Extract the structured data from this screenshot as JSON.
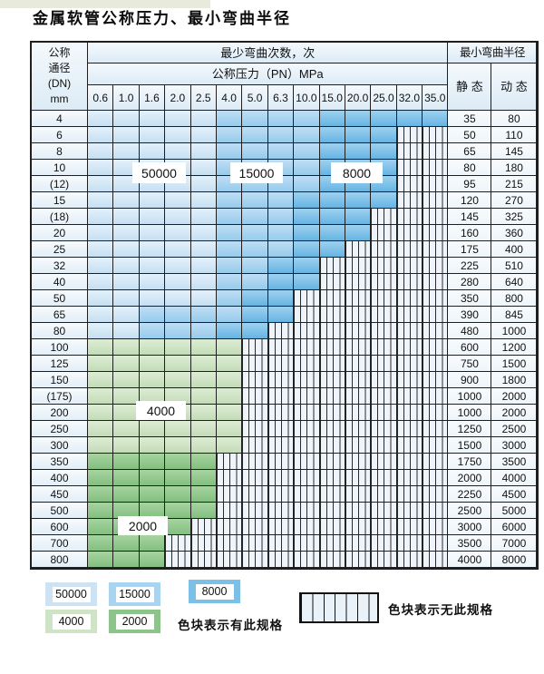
{
  "title": "金属软管公称压力、最小弯曲半径",
  "table": {
    "dn_header_lines": [
      "公称",
      "通径",
      "(DN)",
      "mm"
    ],
    "bend_cycles_header": "最少弯曲次数，次",
    "pressure_header": "公称压力（PN）MPa",
    "radius_header": "最小弯曲半径",
    "static_header": "静 态",
    "dynamic_header": "动 态",
    "pn_columns": [
      "0.6",
      "1.0",
      "1.6",
      "2.0",
      "2.5",
      "4.0",
      "5.0",
      "6.3",
      "10.0",
      "15.0",
      "20.0",
      "25.0",
      "32.0",
      "35.0"
    ],
    "zone_meaning": {
      "b1": "50000",
      "b2": "15000",
      "b3": "8000",
      "g1": "4000",
      "g2": "2000",
      "x": "无此规格"
    },
    "rows": [
      {
        "dn": "4",
        "static": "35",
        "dynamic": "80",
        "cells": [
          "b1",
          "b1",
          "b1",
          "b1",
          "b1",
          "b2",
          "b2",
          "b2",
          "b2",
          "b3",
          "b3",
          "b3",
          "b3",
          "b3"
        ]
      },
      {
        "dn": "6",
        "static": "50",
        "dynamic": "110",
        "cells": [
          "b1",
          "b1",
          "b1",
          "b1",
          "b1",
          "b2",
          "b2",
          "b2",
          "b2",
          "b3",
          "b3",
          "b3",
          "x",
          "x"
        ]
      },
      {
        "dn": "8",
        "static": "65",
        "dynamic": "145",
        "cells": [
          "b1",
          "b1",
          "b1",
          "b1",
          "b1",
          "b2",
          "b2",
          "b2",
          "b2",
          "b3",
          "b3",
          "b3",
          "x",
          "x"
        ]
      },
      {
        "dn": "10",
        "static": "80",
        "dynamic": "180",
        "cells": [
          "b1",
          "b1",
          "b1",
          "b1",
          "b1",
          "b2",
          "b2",
          "b2",
          "b2",
          "b3",
          "b3",
          "b3",
          "x",
          "x"
        ]
      },
      {
        "dn": "(12)",
        "static": "95",
        "dynamic": "215",
        "cells": [
          "b1",
          "b1",
          "b1",
          "b1",
          "b1",
          "b2",
          "b2",
          "b2",
          "b2",
          "b3",
          "b3",
          "b3",
          "x",
          "x"
        ]
      },
      {
        "dn": "15",
        "static": "120",
        "dynamic": "270",
        "cells": [
          "b1",
          "b1",
          "b1",
          "b1",
          "b1",
          "b2",
          "b2",
          "b2",
          "b3",
          "b3",
          "b3",
          "b3",
          "x",
          "x"
        ]
      },
      {
        "dn": "(18)",
        "static": "145",
        "dynamic": "325",
        "cells": [
          "b1",
          "b1",
          "b1",
          "b1",
          "b1",
          "b2",
          "b2",
          "b2",
          "b3",
          "b3",
          "b3",
          "x",
          "x",
          "x"
        ]
      },
      {
        "dn": "20",
        "static": "160",
        "dynamic": "360",
        "cells": [
          "b1",
          "b1",
          "b1",
          "b1",
          "b1",
          "b2",
          "b2",
          "b2",
          "b3",
          "b3",
          "b3",
          "x",
          "x",
          "x"
        ]
      },
      {
        "dn": "25",
        "static": "175",
        "dynamic": "400",
        "cells": [
          "b1",
          "b1",
          "b1",
          "b1",
          "b1",
          "b2",
          "b2",
          "b2",
          "b3",
          "b3",
          "x",
          "x",
          "x",
          "x"
        ]
      },
      {
        "dn": "32",
        "static": "225",
        "dynamic": "510",
        "cells": [
          "b1",
          "b1",
          "b1",
          "b1",
          "b1",
          "b2",
          "b2",
          "b3",
          "b3",
          "x",
          "x",
          "x",
          "x",
          "x"
        ]
      },
      {
        "dn": "40",
        "static": "280",
        "dynamic": "640",
        "cells": [
          "b1",
          "b1",
          "b1",
          "b1",
          "b1",
          "b2",
          "b2",
          "b3",
          "b3",
          "x",
          "x",
          "x",
          "x",
          "x"
        ]
      },
      {
        "dn": "50",
        "static": "350",
        "dynamic": "800",
        "cells": [
          "b1",
          "b1",
          "b1",
          "b1",
          "b1",
          "b2",
          "b3",
          "b3",
          "x",
          "x",
          "x",
          "x",
          "x",
          "x"
        ]
      },
      {
        "dn": "65",
        "static": "390",
        "dynamic": "845",
        "cells": [
          "b1",
          "b1",
          "b2",
          "b2",
          "b2",
          "b2",
          "b3",
          "b3",
          "x",
          "x",
          "x",
          "x",
          "x",
          "x"
        ]
      },
      {
        "dn": "80",
        "static": "480",
        "dynamic": "1000",
        "cells": [
          "b1",
          "b1",
          "b2",
          "b2",
          "b2",
          "b3",
          "b3",
          "x",
          "x",
          "x",
          "x",
          "x",
          "x",
          "x"
        ]
      },
      {
        "dn": "100",
        "static": "600",
        "dynamic": "1200",
        "cells": [
          "g1",
          "g1",
          "g1",
          "g1",
          "g1",
          "g1",
          "x",
          "x",
          "x",
          "x",
          "x",
          "x",
          "x",
          "x"
        ]
      },
      {
        "dn": "125",
        "static": "750",
        "dynamic": "1500",
        "cells": [
          "g1",
          "g1",
          "g1",
          "g1",
          "g1",
          "g1",
          "x",
          "x",
          "x",
          "x",
          "x",
          "x",
          "x",
          "x"
        ]
      },
      {
        "dn": "150",
        "static": "900",
        "dynamic": "1800",
        "cells": [
          "g1",
          "g1",
          "g1",
          "g1",
          "g1",
          "g1",
          "x",
          "x",
          "x",
          "x",
          "x",
          "x",
          "x",
          "x"
        ]
      },
      {
        "dn": "(175)",
        "static": "1000",
        "dynamic": "2000",
        "cells": [
          "g1",
          "g1",
          "g1",
          "g1",
          "g1",
          "g1",
          "x",
          "x",
          "x",
          "x",
          "x",
          "x",
          "x",
          "x"
        ]
      },
      {
        "dn": "200",
        "static": "1000",
        "dynamic": "2000",
        "cells": [
          "g1",
          "g1",
          "g1",
          "g1",
          "g1",
          "g1",
          "x",
          "x",
          "x",
          "x",
          "x",
          "x",
          "x",
          "x"
        ]
      },
      {
        "dn": "250",
        "static": "1250",
        "dynamic": "2500",
        "cells": [
          "g1",
          "g1",
          "g1",
          "g1",
          "g1",
          "g1",
          "x",
          "x",
          "x",
          "x",
          "x",
          "x",
          "x",
          "x"
        ]
      },
      {
        "dn": "300",
        "static": "1500",
        "dynamic": "3000",
        "cells": [
          "g1",
          "g1",
          "g1",
          "g1",
          "g1",
          "g1",
          "x",
          "x",
          "x",
          "x",
          "x",
          "x",
          "x",
          "x"
        ]
      },
      {
        "dn": "350",
        "static": "1750",
        "dynamic": "3500",
        "cells": [
          "g2",
          "g2",
          "g2",
          "g2",
          "g2",
          "x",
          "x",
          "x",
          "x",
          "x",
          "x",
          "x",
          "x",
          "x"
        ]
      },
      {
        "dn": "400",
        "static": "2000",
        "dynamic": "4000",
        "cells": [
          "g2",
          "g2",
          "g2",
          "g2",
          "g2",
          "x",
          "x",
          "x",
          "x",
          "x",
          "x",
          "x",
          "x",
          "x"
        ]
      },
      {
        "dn": "450",
        "static": "2250",
        "dynamic": "4500",
        "cells": [
          "g2",
          "g2",
          "g2",
          "g2",
          "g2",
          "x",
          "x",
          "x",
          "x",
          "x",
          "x",
          "x",
          "x",
          "x"
        ]
      },
      {
        "dn": "500",
        "static": "2500",
        "dynamic": "5000",
        "cells": [
          "g2",
          "g2",
          "g2",
          "g2",
          "g2",
          "x",
          "x",
          "x",
          "x",
          "x",
          "x",
          "x",
          "x",
          "x"
        ]
      },
      {
        "dn": "600",
        "static": "3000",
        "dynamic": "6000",
        "cells": [
          "g2",
          "g2",
          "g2",
          "g2",
          "x",
          "x",
          "x",
          "x",
          "x",
          "x",
          "x",
          "x",
          "x",
          "x"
        ]
      },
      {
        "dn": "700",
        "static": "3500",
        "dynamic": "7000",
        "cells": [
          "g2",
          "g2",
          "g2",
          "x",
          "x",
          "x",
          "x",
          "x",
          "x",
          "x",
          "x",
          "x",
          "x",
          "x"
        ]
      },
      {
        "dn": "800",
        "static": "4000",
        "dynamic": "8000",
        "cells": [
          "g2",
          "g2",
          "g2",
          "x",
          "x",
          "x",
          "x",
          "x",
          "x",
          "x",
          "x",
          "x",
          "x",
          "x"
        ]
      }
    ]
  },
  "zone_labels": [
    {
      "text": "50000"
    },
    {
      "text": "15000"
    },
    {
      "text": "8000"
    },
    {
      "text": "4000"
    },
    {
      "text": "2000"
    }
  ],
  "legend": {
    "blocks": [
      {
        "value": "50000",
        "zone": "b1"
      },
      {
        "value": "15000",
        "zone": "b2"
      },
      {
        "value": "8000",
        "zone": "b3"
      },
      {
        "value": "4000",
        "zone": "g1"
      },
      {
        "value": "2000",
        "zone": "g2"
      }
    ],
    "has_spec_text": "色块表示有此规格",
    "no_spec_text": "色块表示无此规格"
  },
  "colors": {
    "zone_50000": "#cde3f4",
    "zone_15000": "#a9d4ef",
    "zone_8000": "#7cc0e8",
    "zone_4000": "#cfe4c6",
    "zone_2000": "#8cc48a",
    "hatch_bg": "#eef4fa",
    "border": "#1f1f1f"
  }
}
